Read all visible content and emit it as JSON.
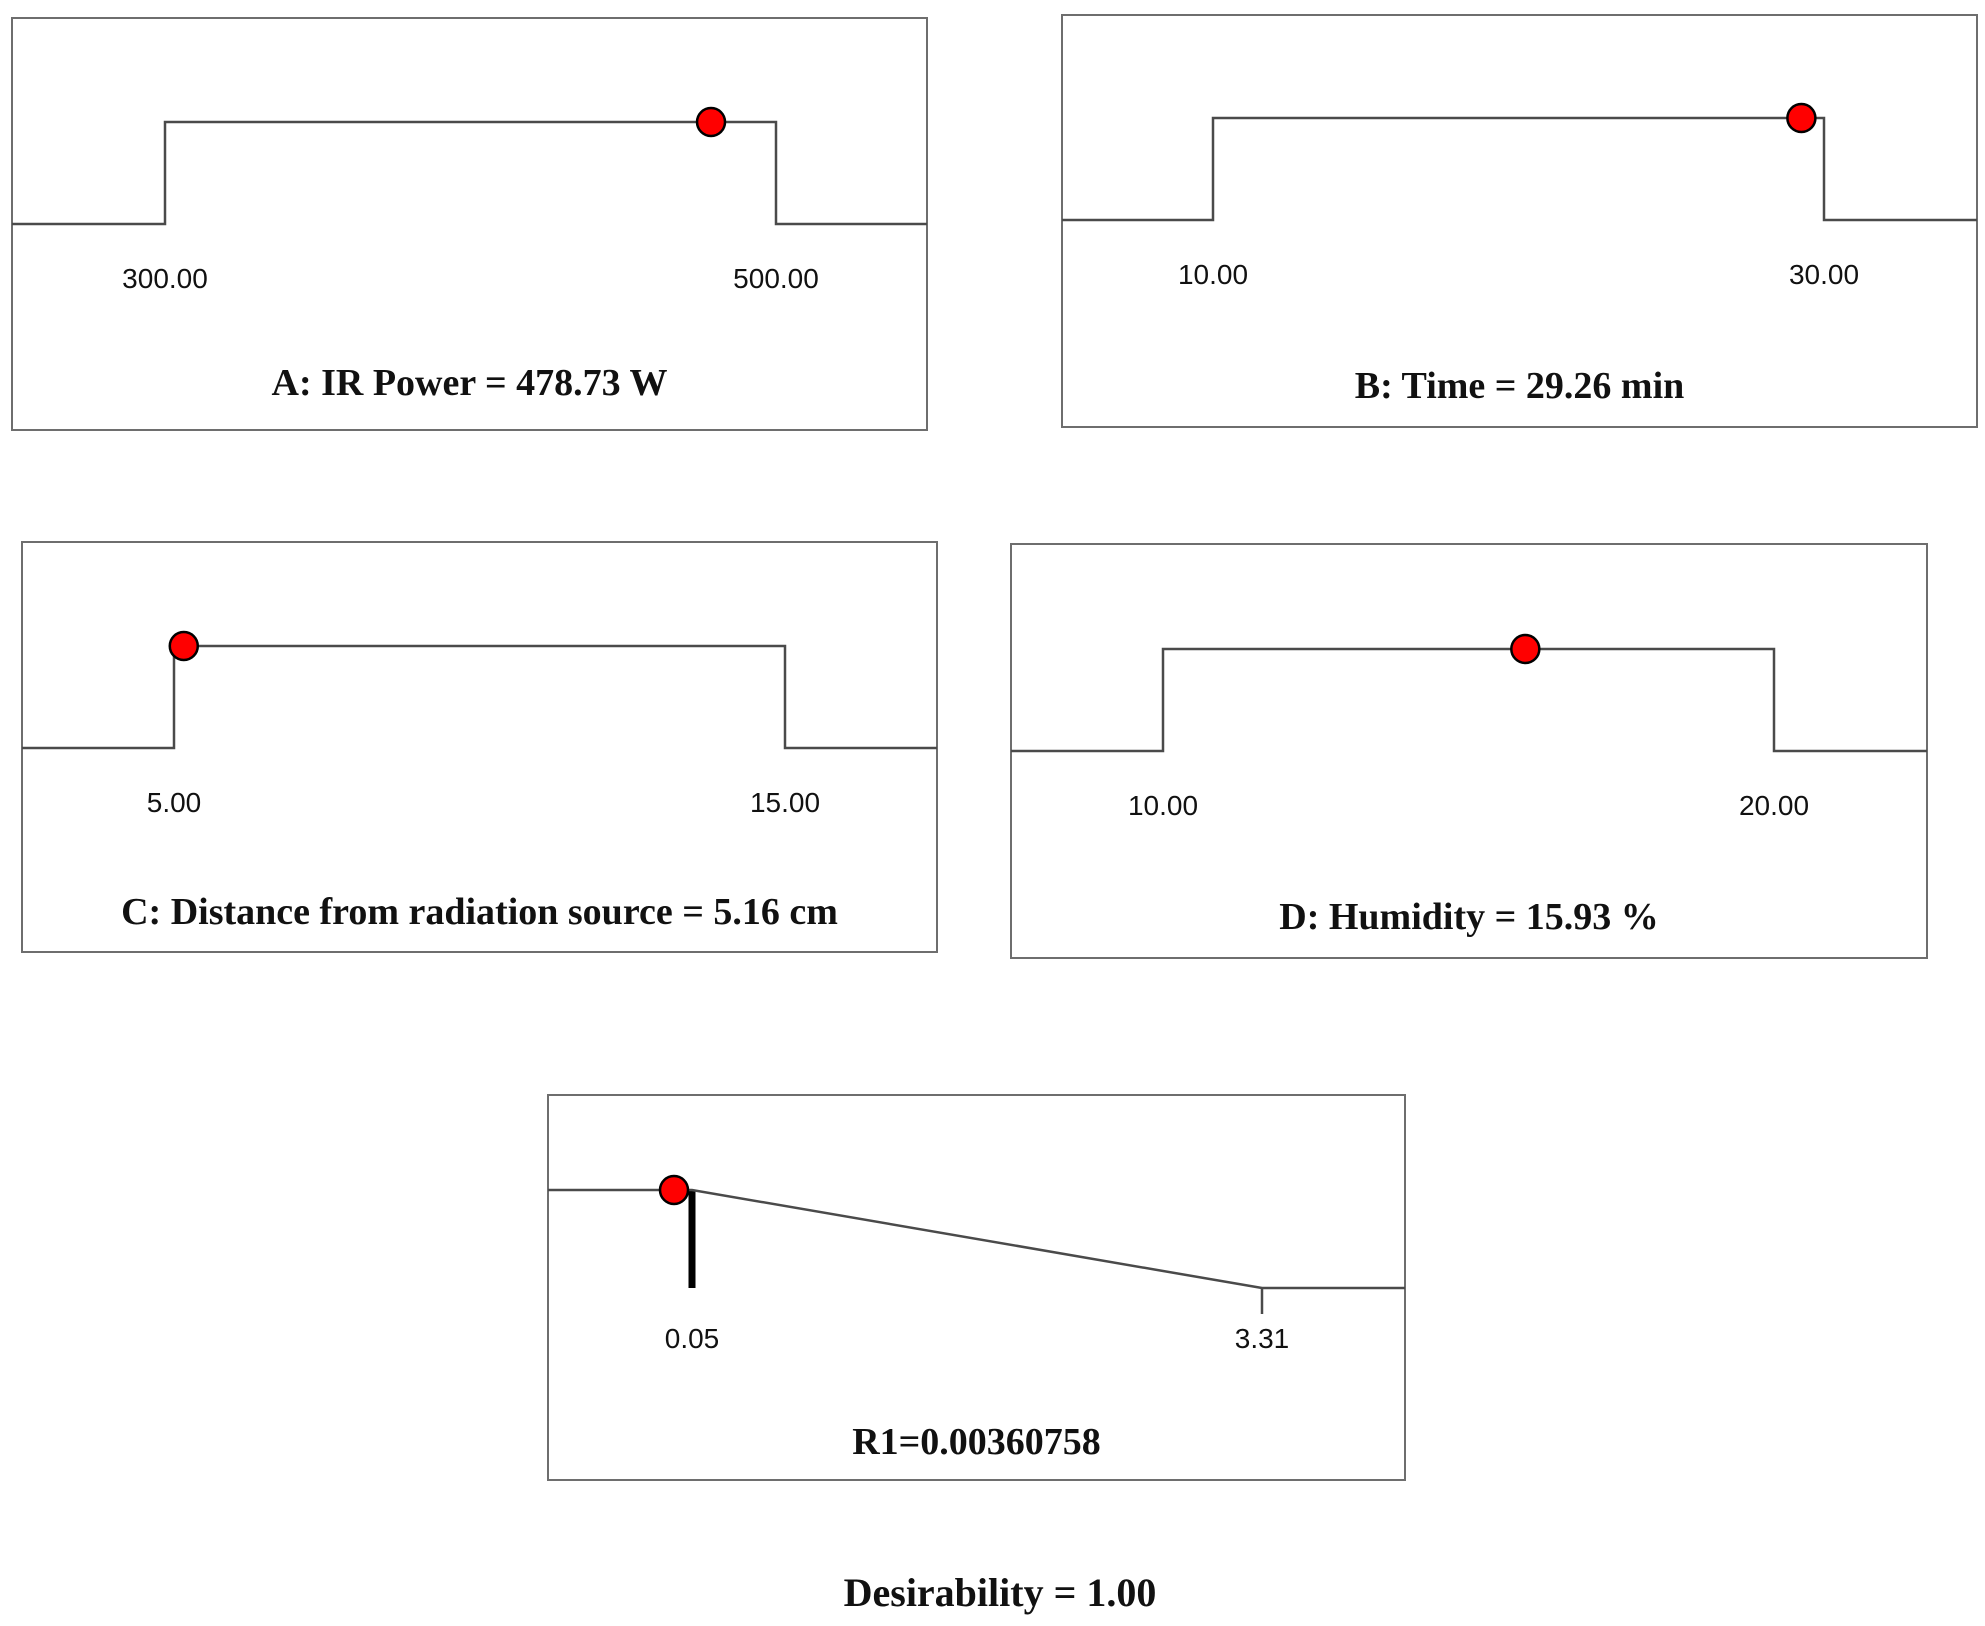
{
  "chart_data": [
    {
      "type": "line",
      "factor": "A",
      "title": "A: IR Power = 478.73 W",
      "low": 300.0,
      "high": 500.0,
      "low_label": "300.00",
      "high_label": "500.00",
      "value": 478.73,
      "profile": "step"
    },
    {
      "type": "line",
      "factor": "B",
      "title": "B: Time = 29.26 min",
      "low": 10.0,
      "high": 30.0,
      "low_label": "10.00",
      "high_label": "30.00",
      "value": 29.26,
      "profile": "step"
    },
    {
      "type": "line",
      "factor": "C",
      "title": "C: Distance from radiation source = 5.16 cm",
      "low": 5.0,
      "high": 15.0,
      "low_label": "5.00",
      "high_label": "15.00",
      "value": 5.16,
      "profile": "step"
    },
    {
      "type": "line",
      "factor": "D",
      "title": "D: Humidity = 15.93 %",
      "low": 10.0,
      "high": 20.0,
      "low_label": "10.00",
      "high_label": "20.00",
      "value": 15.93,
      "profile": "step"
    },
    {
      "type": "line",
      "factor": "R1",
      "title": "R1=0.00360758",
      "low": 0.05,
      "high": 3.31,
      "low_label": "0.05",
      "high_label": "3.31",
      "value": 0.00360758,
      "profile": "minimize"
    }
  ],
  "desirability": "Desirability = 1.00",
  "colors": {
    "marker": "#ff0000",
    "line": "#4a4a4a",
    "frame": "#6e6e6e"
  }
}
